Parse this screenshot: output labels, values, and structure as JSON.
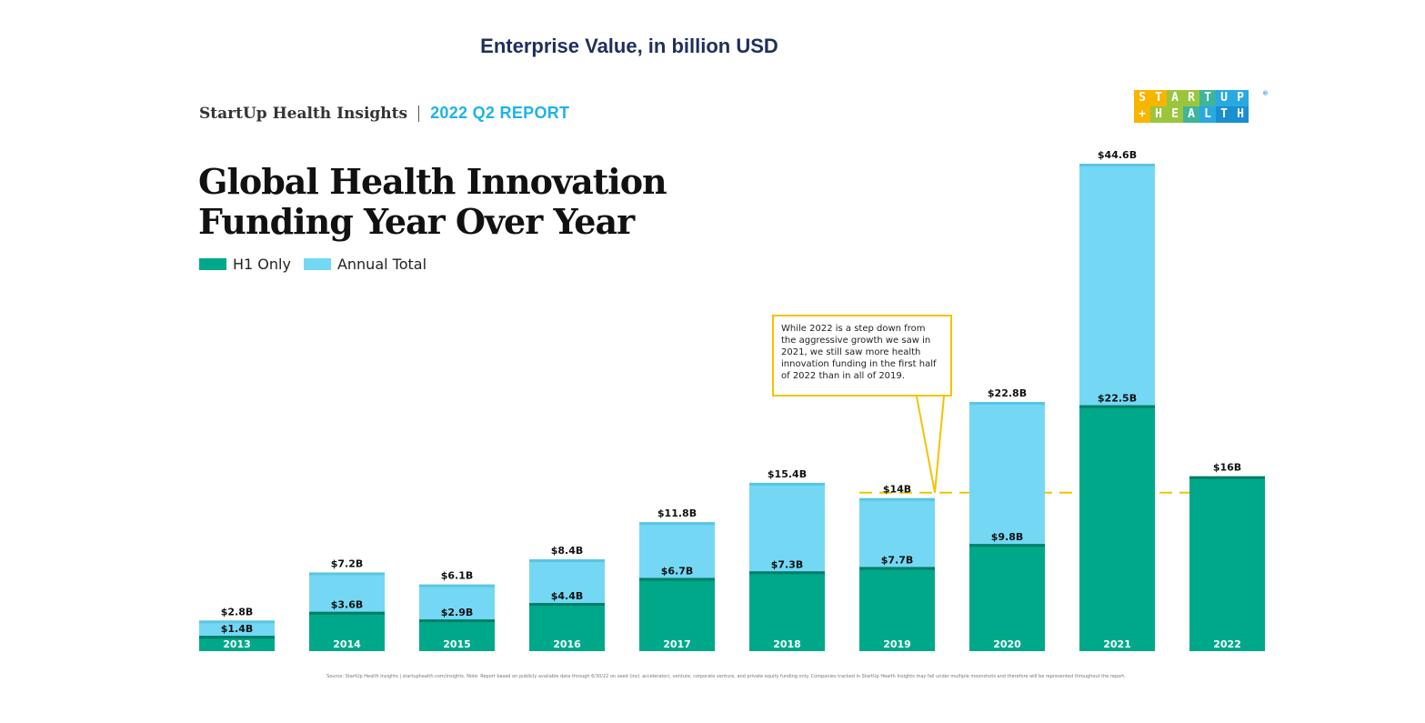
{
  "top_title": "Enterprise Value, in billion USD",
  "header": {
    "brand": "StartUp Health Insights",
    "report": "2022 Q2 REPORT"
  },
  "headline": {
    "line1": "Global Health Innovation",
    "line2": "Funding Year Over Year"
  },
  "legend": {
    "h1_label": "H1 Only",
    "annual_label": "Annual Total"
  },
  "logo": {
    "row1": [
      "S",
      "T",
      "A",
      "R",
      "T",
      "U",
      "P"
    ],
    "row2": [
      "+",
      "H",
      "E",
      "A",
      "L",
      "T",
      "H"
    ],
    "row1_colors": [
      "#f7b500",
      "#f7b500",
      "#9bc53d",
      "#9bc53d",
      "#3fb59b",
      "#29a9e1",
      "#29a9e1"
    ],
    "row2_colors": [
      "#f7b500",
      "#9bc53d",
      "#9bc53d",
      "#3fb59b",
      "#29a9e1",
      "#1a8fd0",
      "#1a8fd0"
    ],
    "reg_mark": "®"
  },
  "callout": {
    "text": "While 2022 is a step down from the aggressive growth we saw in 2021, we still saw more health innovation funding in the first half of 2022 than in all of 2019."
  },
  "source_note": "Source: StartUp Health Insights | startuphealth.com/insights. Note: Report based on publicly available data through 6/30/22 on seed (incl. accelerator), venture, corporate venture, and private equity funding only. Companies tracked in StartUp Health Insights may fall under multiple moonshots and therefore will be represented throughout the report.",
  "colors": {
    "h1": "#00a88a",
    "annual": "#74d8f4",
    "annual_top": "#5bc5e3",
    "h1_top": "#007e68",
    "dash": "#f2c400",
    "label": "#111111",
    "year_label": "#ffffff"
  },
  "chart_data": {
    "type": "bar",
    "title": "Global Health Innovation Funding Year Over Year",
    "xlabel": "",
    "ylabel": "Enterprise Value, in billion USD",
    "ylim": [
      0,
      46
    ],
    "stacked_overlay": true,
    "categories": [
      "2013",
      "2014",
      "2015",
      "2016",
      "2017",
      "2018",
      "2019",
      "2020",
      "2021",
      "2022"
    ],
    "series": [
      {
        "name": "Annual Total",
        "values": [
          2.8,
          7.2,
          6.1,
          8.4,
          11.8,
          15.4,
          14,
          22.8,
          44.6,
          null
        ],
        "labels": [
          "$2.8B",
          "$7.2B",
          "$6.1B",
          "$8.4B",
          "$11.8B",
          "$15.4B",
          "$14B",
          "$22.8B",
          "$44.6B",
          ""
        ]
      },
      {
        "name": "H1 Only",
        "values": [
          1.4,
          3.6,
          2.9,
          4.4,
          6.7,
          7.3,
          7.7,
          9.8,
          22.5,
          16
        ],
        "labels": [
          "$1.4B",
          "$3.6B",
          "$2.9B",
          "$4.4B",
          "$6.7B",
          "$7.3B",
          "$7.7B",
          "$9.8B",
          "$22.5B",
          "$16B"
        ]
      }
    ],
    "reference_line": {
      "value": 14.5,
      "style": "dashed",
      "from_category": "2019",
      "to_category": "2022"
    }
  }
}
